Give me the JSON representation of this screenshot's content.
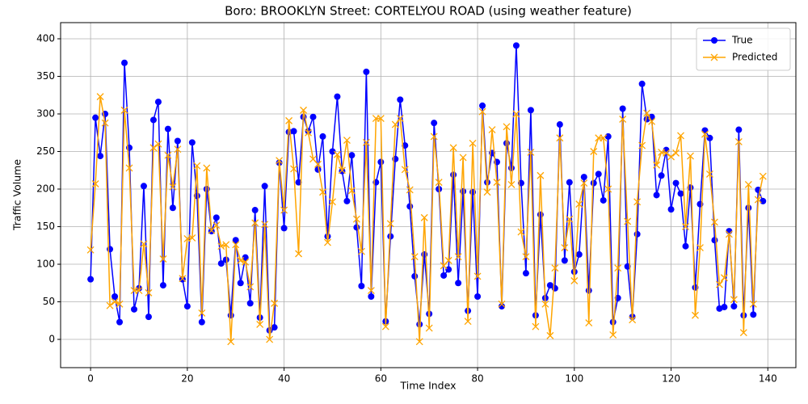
{
  "chart_data": {
    "type": "line",
    "title": "Boro: BROOKLYN Street: CORTELYOU ROAD (using weather feature)",
    "x_label": "Time Index",
    "y_label": "Traffic Volume",
    "x": [
      0,
      1,
      2,
      3,
      4,
      5,
      6,
      7,
      8,
      9,
      10,
      11,
      12,
      13,
      14,
      15,
      16,
      17,
      18,
      19,
      20,
      21,
      22,
      23,
      24,
      25,
      26,
      27,
      28,
      29,
      30,
      31,
      32,
      33,
      34,
      35,
      36,
      37,
      38,
      39,
      40,
      41,
      42,
      43,
      44,
      45,
      46,
      47,
      48,
      49,
      50,
      51,
      52,
      53,
      54,
      55,
      56,
      57,
      58,
      59,
      60,
      61,
      62,
      63,
      64,
      65,
      66,
      67,
      68,
      69,
      70,
      71,
      72,
      73,
      74,
      75,
      76,
      77,
      78,
      79,
      80,
      81,
      82,
      83,
      84,
      85,
      86,
      87,
      88,
      89,
      90,
      91,
      92,
      93,
      94,
      95,
      96,
      97,
      98,
      99,
      100,
      101,
      102,
      103,
      104,
      105,
      106,
      107,
      108,
      109,
      110,
      111,
      112,
      113,
      114,
      115,
      116,
      117,
      118,
      119,
      120,
      121,
      122,
      123,
      124,
      125,
      126,
      127,
      128,
      129,
      130,
      131,
      132,
      133,
      134,
      135,
      136,
      137,
      138,
      139
    ],
    "series": [
      {
        "name": "True",
        "color": "#0000ff",
        "marker": "o",
        "values": [
          80,
          295,
          244,
          300,
          120,
          57,
          23,
          368,
          255,
          40,
          68,
          204,
          30,
          292,
          316,
          72,
          280,
          175,
          264,
          80,
          44,
          262,
          191,
          23,
          200,
          144,
          162,
          101,
          106,
          32,
          132,
          75,
          109,
          48,
          172,
          29,
          204,
          12,
          16,
          235,
          148,
          276,
          277,
          209,
          296,
          277,
          296,
          226,
          270,
          137,
          250,
          323,
          224,
          184,
          245,
          149,
          71,
          356,
          57,
          209,
          236,
          24,
          137,
          240,
          319,
          258,
          177,
          84,
          20,
          113,
          34,
          288,
          200,
          85,
          93,
          219,
          75,
          197,
          38,
          196,
          57,
          311,
          209,
          248,
          236,
          44,
          261,
          228,
          391,
          208,
          88,
          305,
          32,
          166,
          55,
          72,
          68,
          286,
          105,
          209,
          90,
          113,
          216,
          65,
          208,
          220,
          185,
          270,
          23,
          55,
          307,
          97,
          30,
          140,
          340,
          293,
          296,
          192,
          218,
          252,
          173,
          208,
          194,
          124,
          202,
          69,
          180,
          278,
          268,
          132,
          41,
          43,
          144,
          44,
          279,
          32,
          175,
          33,
          199,
          184
        ]
      },
      {
        "name": "Predicted",
        "color": "#ffa500",
        "marker": "x",
        "values": [
          119,
          207,
          323,
          288,
          45,
          50,
          47,
          305,
          228,
          65,
          65,
          127,
          62,
          255,
          260,
          107,
          245,
          203,
          253,
          81,
          134,
          135,
          231,
          35,
          228,
          145,
          152,
          124,
          126,
          -3,
          126,
          105,
          103,
          70,
          155,
          20,
          153,
          0,
          48,
          238,
          172,
          291,
          227,
          114,
          305,
          275,
          240,
          233,
          196,
          129,
          183,
          246,
          225,
          265,
          198,
          160,
          117,
          262,
          65,
          294,
          294,
          17,
          154,
          286,
          294,
          226,
          199,
          110,
          -3,
          162,
          15,
          270,
          209,
          98,
          105,
          255,
          110,
          242,
          24,
          261,
          84,
          303,
          196,
          279,
          209,
          47,
          283,
          206,
          300,
          143,
          110,
          249,
          17,
          218,
          47,
          5,
          95,
          268,
          122,
          160,
          78,
          180,
          208,
          22,
          250,
          268,
          268,
          200,
          6,
          95,
          293,
          157,
          26,
          183,
          258,
          301,
          290,
          232,
          249,
          248,
          243,
          248,
          271,
          150,
          244,
          32,
          122,
          273,
          220,
          156,
          73,
          82,
          140,
          53,
          263,
          9,
          206,
          47,
          186,
          217
        ]
      }
    ],
    "xlim": [
      -6.2,
      145.8
    ],
    "ylim": [
      -37.6,
      421.5
    ],
    "xticks": [
      0,
      20,
      40,
      60,
      80,
      100,
      120,
      140
    ],
    "yticks": [
      0,
      50,
      100,
      150,
      200,
      250,
      300,
      350,
      400
    ],
    "grid": true,
    "legend": "upper right"
  }
}
